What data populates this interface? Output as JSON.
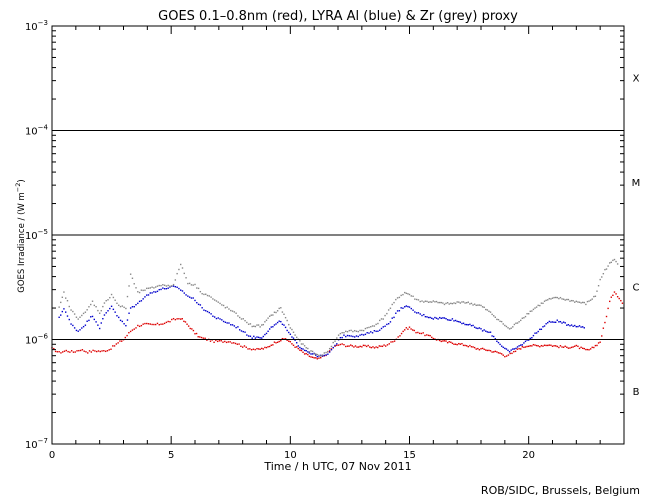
{
  "chart_data": {
    "type": "scatter",
    "title": "GOES 0.1–0.8nm (red), LYRA Al (blue) & Zr (grey) proxy",
    "xlabel": "Time / h UTC, 07 Nov 2011",
    "ylabel_main": "GOES Irradiance / (W m",
    "ylabel_sup": "−2",
    "ylabel_close": ")",
    "xlim": [
      0,
      24
    ],
    "ylim": [
      1e-07,
      0.001
    ],
    "yscale": "log",
    "x_ticks": [
      0,
      5,
      10,
      15,
      20
    ],
    "x_tick_labels": [
      "0",
      "5",
      "10",
      "15",
      "20"
    ],
    "y_ticks": [
      1e-07,
      1e-06,
      1e-05,
      0.0001,
      0.001
    ],
    "y_tick_labels": [
      {
        "base": "10",
        "exp": "−7"
      },
      {
        "base": "10",
        "exp": "−6"
      },
      {
        "base": "10",
        "exp": "−5"
      },
      {
        "base": "10",
        "exp": "−4"
      },
      {
        "base": "10",
        "exp": "−3"
      }
    ],
    "flare_threshold_lines": [
      1e-06,
      1e-05,
      0.0001
    ],
    "flare_classes": [
      {
        "label": "X",
        "y": 0.00032
      },
      {
        "label": "M",
        "y": 3.2e-05
      },
      {
        "label": "C",
        "y": 3.2e-06
      },
      {
        "label": "B",
        "y": 3.2e-07
      }
    ],
    "series": [
      {
        "color": "#dd0000",
        "style": "dots",
        "x": [
          0.0,
          0.3,
          0.6,
          0.9,
          1.2,
          1.5,
          1.8,
          2.1,
          2.4,
          2.7,
          3.0,
          3.3,
          3.6,
          3.9,
          4.2,
          4.5,
          4.8,
          5.1,
          5.4,
          5.6,
          5.8,
          6.0,
          6.2,
          6.5,
          6.8,
          7.1,
          7.4,
          7.7,
          8.0,
          8.3,
          8.6,
          9.0,
          9.4,
          9.8,
          10.2,
          10.6,
          11.0,
          11.2,
          11.5,
          11.8,
          12.1,
          12.4,
          12.8,
          13.2,
          13.6,
          14.0,
          14.3,
          14.6,
          14.8,
          15.0,
          15.2,
          15.5,
          15.8,
          16.2,
          16.6,
          17.0,
          17.4,
          17.8,
          18.2,
          18.6,
          18.8,
          19.0,
          19.3,
          19.6,
          20.0,
          20.4,
          20.8,
          21.2,
          21.6,
          22.0,
          22.4,
          22.6,
          23.0,
          23.2,
          23.4,
          23.6,
          23.8,
          24.0
        ],
        "y": [
          8.2e-07,
          7.5e-07,
          7.8e-07,
          7.6e-07,
          8e-07,
          7.6e-07,
          7.8e-07,
          7.7e-07,
          8e-07,
          9e-07,
          1e-06,
          1.2e-06,
          1.35e-06,
          1.4e-06,
          1.38e-06,
          1.4e-06,
          1.45e-06,
          1.55e-06,
          1.6e-06,
          1.45e-06,
          1.3e-06,
          1.15e-06,
          1.05e-06,
          1e-06,
          9.6e-07,
          9.6e-07,
          9.6e-07,
          9.3e-07,
          8.6e-07,
          8.2e-07,
          8e-07,
          8.3e-07,
          9.5e-07,
          1.02e-06,
          8.6e-07,
          7.3e-07,
          6.6e-07,
          6.5e-07,
          7.2e-07,
          8.4e-07,
          9e-07,
          8.7e-07,
          8.6e-07,
          8.6e-07,
          8.4e-07,
          8.8e-07,
          9.5e-07,
          1.1e-06,
          1.25e-06,
          1.3e-06,
          1.2e-06,
          1.15e-06,
          1.08e-06,
          9.9e-07,
          9.4e-07,
          9.1e-07,
          8.8e-07,
          8.2e-07,
          8e-07,
          7.6e-07,
          7.4e-07,
          7e-07,
          7.3e-07,
          8.2e-07,
          8.8e-07,
          8.7e-07,
          8.9e-07,
          8.6e-07,
          8.4e-07,
          8.6e-07,
          7.9e-07,
          8e-07,
          9.5e-07,
          1.45e-06,
          2.3e-06,
          2.9e-06,
          2.5e-06,
          2.1e-06
        ]
      },
      {
        "color": "#0000cc",
        "style": "dots",
        "x": [
          0.3,
          0.5,
          0.8,
          1.1,
          1.4,
          1.7,
          2.0,
          2.2,
          2.5,
          2.8,
          3.1,
          3.3,
          3.6,
          3.9,
          4.2,
          4.5,
          4.8,
          5.1,
          5.4,
          5.7,
          6.0,
          6.3,
          6.6,
          6.9,
          7.2,
          7.5,
          7.8,
          8.1,
          8.4,
          8.8,
          9.2,
          9.6,
          10.0,
          10.4,
          10.8,
          11.2,
          11.5,
          11.8,
          12.1,
          12.4,
          12.7,
          13.0,
          13.3,
          13.6,
          13.9,
          14.2,
          14.5,
          14.8,
          15.0,
          15.3,
          15.6,
          16.0,
          16.4,
          16.8,
          17.2,
          17.6,
          18.0,
          18.4,
          18.8,
          19.2,
          19.6,
          20.0,
          20.4,
          20.8,
          21.2,
          21.6,
          22.0,
          22.4
        ],
        "y": [
          1.6e-06,
          2e-06,
          1.4e-06,
          1.2e-06,
          1.4e-06,
          1.7e-06,
          1.3e-06,
          1.7e-06,
          2.1e-06,
          1.6e-06,
          1.35e-06,
          2e-06,
          2.2e-06,
          2.6e-06,
          2.8e-06,
          3e-06,
          3.1e-06,
          3.2e-06,
          3e-06,
          2.6e-06,
          2.4e-06,
          2e-06,
          1.8e-06,
          1.6e-06,
          1.5e-06,
          1.4e-06,
          1.3e-06,
          1.15e-06,
          1.05e-06,
          1.05e-06,
          1.3e-06,
          1.5e-06,
          1.1e-06,
          8.5e-07,
          7.5e-07,
          6.9e-07,
          7e-07,
          8.2e-07,
          1.05e-06,
          1.1e-06,
          1.08e-06,
          1.1e-06,
          1.15e-06,
          1.2e-06,
          1.3e-06,
          1.5e-06,
          1.85e-06,
          2.1e-06,
          2e-06,
          1.8e-06,
          1.7e-06,
          1.6e-06,
          1.6e-06,
          1.55e-06,
          1.45e-06,
          1.35e-06,
          1.25e-06,
          1.15e-06,
          9e-07,
          7.6e-07,
          8.6e-07,
          1e-06,
          1.2e-06,
          1.45e-06,
          1.5e-06,
          1.4e-06,
          1.35e-06,
          1.3e-06
        ]
      },
      {
        "color": "#888888",
        "style": "dots",
        "x": [
          0.3,
          0.5,
          0.8,
          1.1,
          1.4,
          1.7,
          2.0,
          2.2,
          2.5,
          2.8,
          3.1,
          3.3,
          3.6,
          3.9,
          4.2,
          4.5,
          4.8,
          5.1,
          5.4,
          5.7,
          6.0,
          6.3,
          6.6,
          6.9,
          7.2,
          7.5,
          7.8,
          8.1,
          8.4,
          8.8,
          9.2,
          9.6,
          10.0,
          10.4,
          10.8,
          11.2,
          11.5,
          11.8,
          12.1,
          12.4,
          12.7,
          13.0,
          13.3,
          13.6,
          13.9,
          14.2,
          14.5,
          14.8,
          15.0,
          15.3,
          15.6,
          16.0,
          16.4,
          16.8,
          17.2,
          17.6,
          18.0,
          18.4,
          18.8,
          19.2,
          19.6,
          20.0,
          20.4,
          20.8,
          21.2,
          21.6,
          22.0,
          22.4,
          22.8,
          23.0,
          23.2,
          23.4,
          23.6,
          23.8
        ],
        "y": [
          2e-06,
          2.8e-06,
          1.9e-06,
          1.6e-06,
          1.8e-06,
          2.3e-06,
          1.8e-06,
          2.2e-06,
          2.7e-06,
          2.1e-06,
          2e-06,
          4.2e-06,
          2.8e-06,
          3e-06,
          3.1e-06,
          3.3e-06,
          3.3e-06,
          3.3e-06,
          5.3e-06,
          3.5e-06,
          3.3e-06,
          2.8e-06,
          2.6e-06,
          2.3e-06,
          2.1e-06,
          1.9e-06,
          1.7e-06,
          1.5e-06,
          1.35e-06,
          1.35e-06,
          1.7e-06,
          2e-06,
          1.3e-06,
          9.5e-07,
          7.8e-07,
          7e-07,
          7.4e-07,
          9.2e-07,
          1.15e-06,
          1.2e-06,
          1.2e-06,
          1.22e-06,
          1.3e-06,
          1.4e-06,
          1.6e-06,
          2e-06,
          2.5e-06,
          2.8e-06,
          2.7e-06,
          2.4e-06,
          2.3e-06,
          2.3e-06,
          2.2e-06,
          2.2e-06,
          2.3e-06,
          2.2e-06,
          2.1e-06,
          1.8e-06,
          1.5e-06,
          1.25e-06,
          1.5e-06,
          1.8e-06,
          2.1e-06,
          2.4e-06,
          2.5e-06,
          2.4e-06,
          2.3e-06,
          2.2e-06,
          2.6e-06,
          3.7e-06,
          4.6e-06,
          5.3e-06,
          5.8e-06,
          5.2e-06
        ]
      }
    ]
  },
  "footer": {
    "credit": "ROB/SIDC, Brussels, Belgium"
  }
}
